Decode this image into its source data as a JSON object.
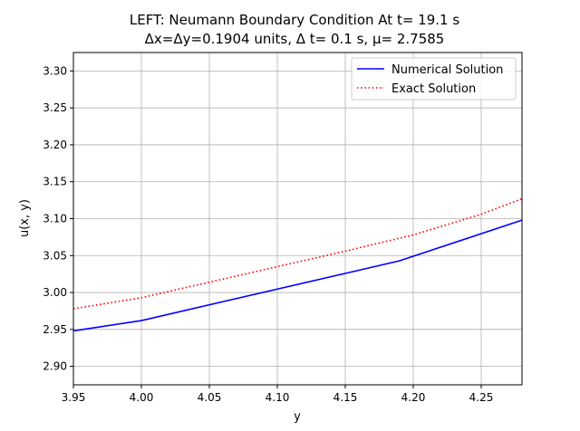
{
  "chart_data": {
    "type": "line",
    "title_line1": "LEFT: Neumann Boundary Condition At t= 19.1 s",
    "title_line2": "Δx=Δy=0.1904 units, Δ t= 0.1 s, μ= 2.7585",
    "xlabel": "y",
    "ylabel": "u(x, y)",
    "xlim": [
      3.95,
      4.28
    ],
    "ylim": [
      2.875,
      3.325
    ],
    "xticks": [
      3.95,
      4.0,
      4.05,
      4.1,
      4.15,
      4.2,
      4.25
    ],
    "xtick_labels": [
      "3.95",
      "4.00",
      "4.05",
      "4.10",
      "4.15",
      "4.20",
      "4.25"
    ],
    "yticks": [
      2.9,
      2.95,
      3.0,
      3.05,
      3.1,
      3.15,
      3.2,
      3.25,
      3.3
    ],
    "ytick_labels": [
      "2.90",
      "2.95",
      "3.00",
      "3.05",
      "3.10",
      "3.15",
      "3.20",
      "3.25",
      "3.30"
    ],
    "grid": true,
    "legend_position": "top-right",
    "series": [
      {
        "name": "Numerical Solution",
        "color": "#0000ff",
        "style": "solid",
        "x": [
          3.95,
          4.0,
          4.19,
          4.28
        ],
        "y": [
          2.948,
          2.962,
          3.043,
          3.098
        ]
      },
      {
        "name": "Exact Solution",
        "color": "#ff0000",
        "style": "dotted",
        "x": [
          3.95,
          4.0,
          4.05,
          4.1,
          4.15,
          4.2,
          4.25,
          4.28
        ],
        "y": [
          2.978,
          2.993,
          3.014,
          3.035,
          3.056,
          3.078,
          3.106,
          3.127
        ]
      }
    ]
  }
}
